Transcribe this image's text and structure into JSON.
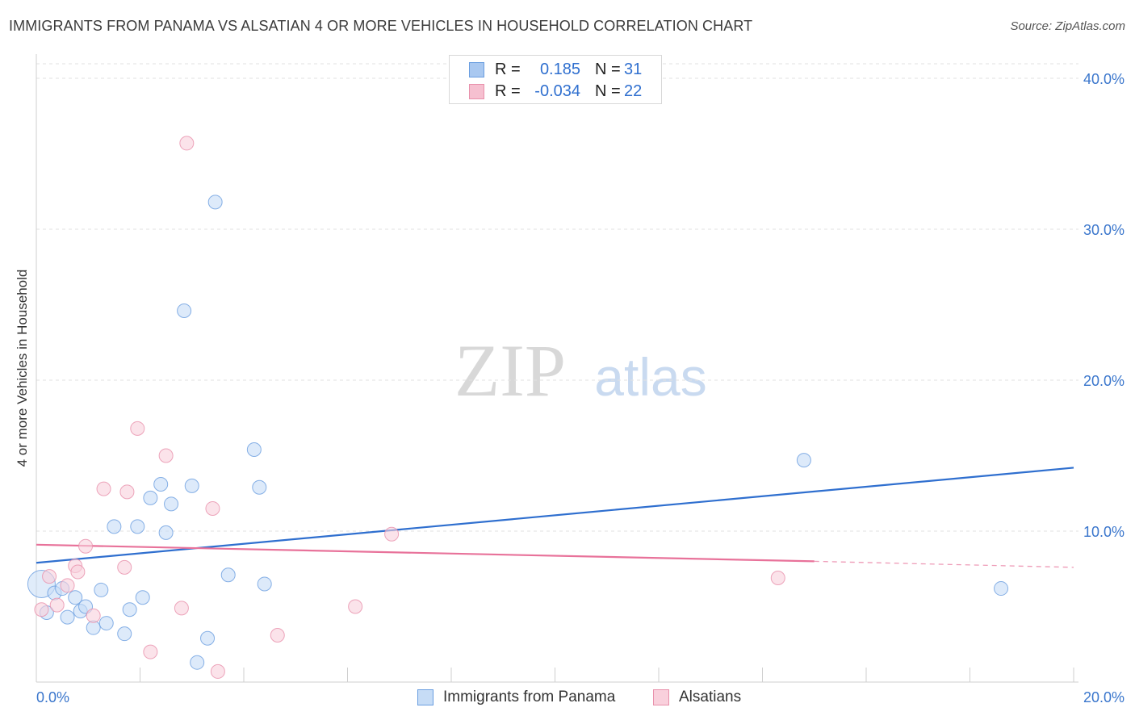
{
  "title": "IMMIGRANTS FROM PANAMA VS ALSATIAN 4 OR MORE VEHICLES IN HOUSEHOLD CORRELATION CHART",
  "source": "Source: ZipAtlas.com",
  "watermark": {
    "zip": "ZIP",
    "atlas": "atlas"
  },
  "stats": [
    {
      "r_label": "R =",
      "r_value": "0.185",
      "n_label": "N =",
      "n_value": "31",
      "color": "#a9c8f0",
      "border": "#6a9ee0"
    },
    {
      "r_label": "R =",
      "r_value": "-0.034",
      "n_label": "N =",
      "n_value": "22",
      "color": "#f6c0d0",
      "border": "#e890ab"
    }
  ],
  "legend": [
    {
      "label": "Immigrants from Panama",
      "color": "#c6dcf6",
      "border": "#6a9ee0"
    },
    {
      "label": "Alsatians",
      "color": "#f9d0dc",
      "border": "#e890ab"
    }
  ],
  "chart_data": {
    "type": "scatter",
    "title": "IMMIGRANTS FROM PANAMA VS ALSATIAN 4 OR MORE VEHICLES IN HOUSEHOLD CORRELATION CHART",
    "xlabel": "",
    "ylabel": "4 or more Vehicles in Household",
    "xlim": [
      0,
      20
    ],
    "ylim": [
      0,
      40
    ],
    "x_tick_labels": [
      "0.0%",
      "20.0%"
    ],
    "y_ticks": [
      10,
      20,
      30,
      40
    ],
    "y_tick_labels": [
      "10.0%",
      "20.0%",
      "30.0%",
      "40.0%"
    ],
    "grid": true,
    "series": [
      {
        "name": "Immigrants from Panama",
        "color": "#6a9ee0",
        "fill": "#c6dcf6",
        "line_color": "#2f6fcf",
        "trend": {
          "x": [
            0,
            20
          ],
          "y": [
            7.9,
            14.2
          ]
        },
        "points": [
          [
            0.1,
            6.5
          ],
          [
            0.2,
            4.6
          ],
          [
            0.35,
            5.9
          ],
          [
            0.5,
            6.2
          ],
          [
            0.6,
            4.3
          ],
          [
            0.75,
            5.6
          ],
          [
            0.85,
            4.7
          ],
          [
            0.95,
            5.0
          ],
          [
            1.1,
            3.6
          ],
          [
            1.25,
            6.1
          ],
          [
            1.35,
            3.9
          ],
          [
            1.5,
            10.3
          ],
          [
            1.7,
            3.2
          ],
          [
            1.8,
            4.8
          ],
          [
            1.95,
            10.3
          ],
          [
            2.05,
            5.6
          ],
          [
            2.2,
            12.2
          ],
          [
            2.4,
            13.1
          ],
          [
            2.5,
            9.9
          ],
          [
            2.6,
            11.8
          ],
          [
            2.85,
            24.6
          ],
          [
            3.0,
            13.0
          ],
          [
            3.1,
            1.3
          ],
          [
            3.3,
            2.9
          ],
          [
            3.45,
            31.8
          ],
          [
            3.7,
            7.1
          ],
          [
            4.2,
            15.4
          ],
          [
            4.3,
            12.9
          ],
          [
            4.4,
            6.5
          ],
          [
            14.8,
            14.7
          ],
          [
            18.6,
            6.2
          ]
        ]
      },
      {
        "name": "Alsatians",
        "color": "#e890ab",
        "fill": "#f9d0dc",
        "line_color": "#e8729a",
        "trend": {
          "x": [
            0,
            15
          ],
          "y": [
            9.1,
            8.0
          ]
        },
        "trend_dashed": {
          "x": [
            15,
            20
          ],
          "y": [
            8.0,
            7.6
          ]
        },
        "points": [
          [
            0.1,
            4.8
          ],
          [
            0.25,
            7.0
          ],
          [
            0.4,
            5.1
          ],
          [
            0.6,
            6.4
          ],
          [
            0.75,
            7.7
          ],
          [
            0.8,
            7.3
          ],
          [
            0.95,
            9.0
          ],
          [
            1.1,
            4.4
          ],
          [
            1.3,
            12.8
          ],
          [
            1.7,
            7.6
          ],
          [
            1.75,
            12.6
          ],
          [
            1.95,
            16.8
          ],
          [
            2.2,
            2.0
          ],
          [
            2.5,
            15.0
          ],
          [
            2.8,
            4.9
          ],
          [
            2.9,
            35.7
          ],
          [
            3.4,
            11.5
          ],
          [
            3.5,
            0.7
          ],
          [
            4.65,
            3.1
          ],
          [
            6.15,
            5.0
          ],
          [
            6.85,
            9.8
          ],
          [
            14.3,
            6.9
          ]
        ]
      }
    ]
  }
}
